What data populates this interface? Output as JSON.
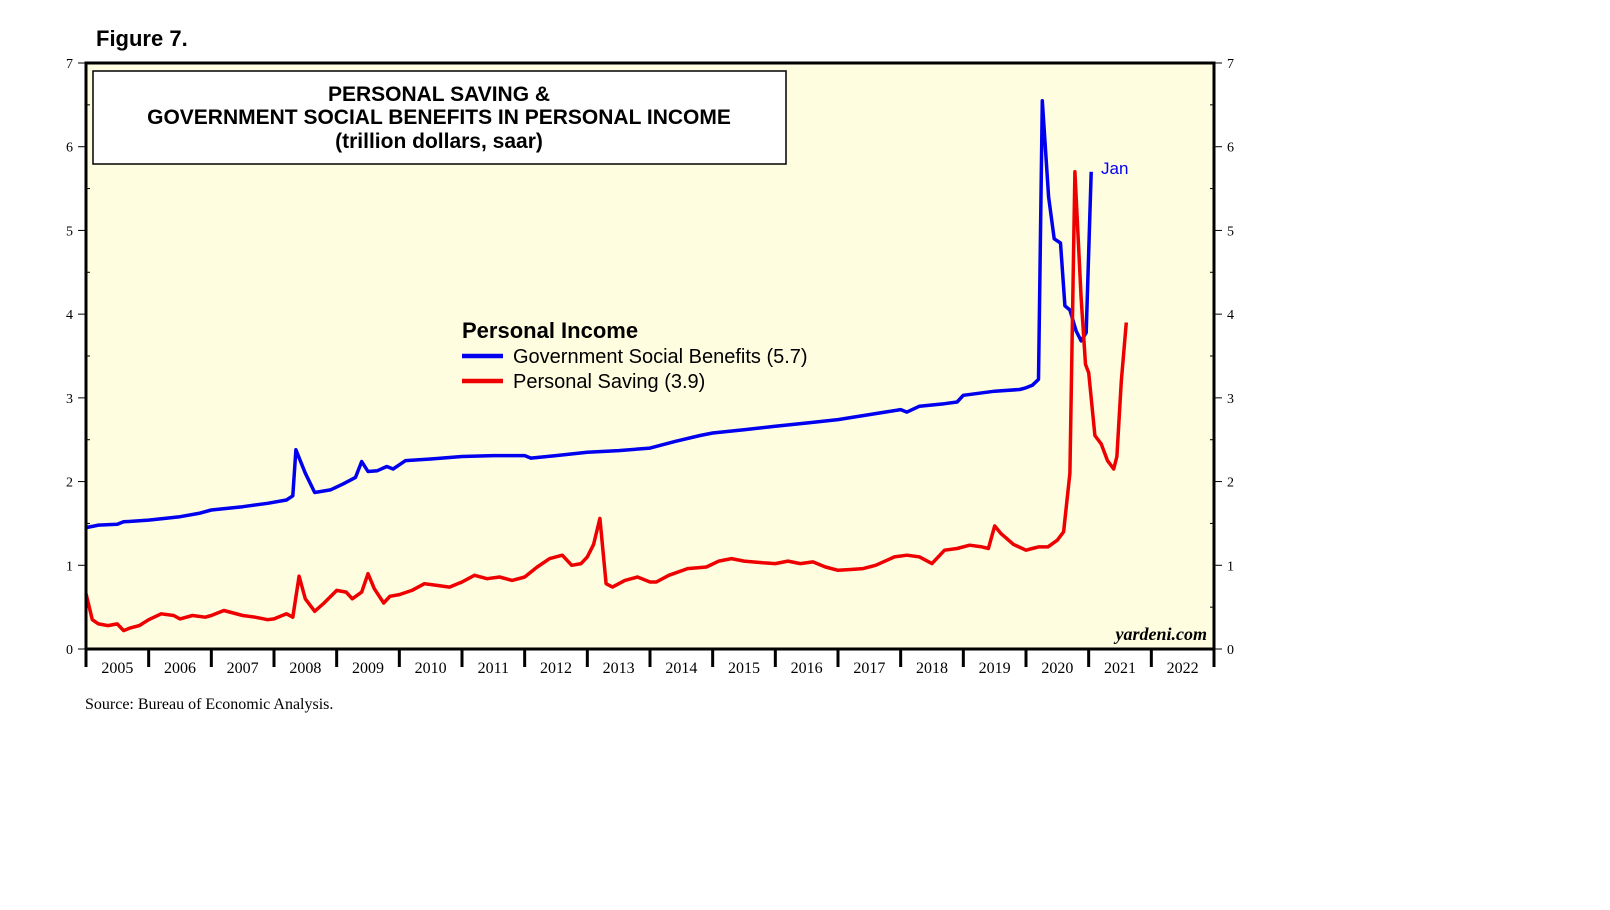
{
  "figure_label": "Figure 7.",
  "source_note": "Source: Bureau of Economic Analysis.",
  "colors": {
    "plot_background": "#fffde0",
    "gov_benefits": "#0000ee",
    "personal_saving": "#ee0000"
  },
  "chart_data": {
    "type": "line",
    "title": [
      "PERSONAL SAVING &",
      "GOVERNMENT SOCIAL BENEFITS IN PERSONAL INCOME",
      "(trillion dollars, saar)"
    ],
    "legend": {
      "title": "Personal Income",
      "entries": [
        "Government Social Benefits (5.7)",
        "Personal Saving (3.9)"
      ],
      "placement": "center-left"
    },
    "annotation": "Jan",
    "watermark": "yardeni.com",
    "xlim": [
      2005,
      2023
    ],
    "ylim": [
      0,
      7
    ],
    "yticks": [
      "0",
      "1",
      "2",
      "3",
      "4",
      "5",
      "6",
      "7"
    ],
    "xticks": [
      "2005",
      "2006",
      "2007",
      "2008",
      "2009",
      "2010",
      "2011",
      "2012",
      "2013",
      "2014",
      "2015",
      "2016",
      "2017",
      "2018",
      "2019",
      "2020",
      "2021",
      "2022"
    ],
    "series": [
      {
        "name": "Government Social Benefits",
        "color": "#0000ee",
        "points": [
          [
            2005.0,
            1.45
          ],
          [
            2005.2,
            1.48
          ],
          [
            2005.5,
            1.49
          ],
          [
            2005.6,
            1.52
          ],
          [
            2006.0,
            1.54
          ],
          [
            2006.5,
            1.58
          ],
          [
            2006.8,
            1.62
          ],
          [
            2007.0,
            1.66
          ],
          [
            2007.5,
            1.7
          ],
          [
            2007.9,
            1.74
          ],
          [
            2008.2,
            1.78
          ],
          [
            2008.3,
            1.83
          ],
          [
            2008.35,
            2.38
          ],
          [
            2008.5,
            2.1
          ],
          [
            2008.65,
            1.87
          ],
          [
            2008.9,
            1.9
          ],
          [
            2009.1,
            1.97
          ],
          [
            2009.3,
            2.05
          ],
          [
            2009.4,
            2.24
          ],
          [
            2009.5,
            2.12
          ],
          [
            2009.65,
            2.13
          ],
          [
            2009.8,
            2.18
          ],
          [
            2009.9,
            2.15
          ],
          [
            2010.0,
            2.2
          ],
          [
            2010.1,
            2.25
          ],
          [
            2010.5,
            2.27
          ],
          [
            2011.0,
            2.3
          ],
          [
            2011.5,
            2.31
          ],
          [
            2012.0,
            2.31
          ],
          [
            2012.1,
            2.28
          ],
          [
            2012.5,
            2.31
          ],
          [
            2013.0,
            2.35
          ],
          [
            2013.5,
            2.37
          ],
          [
            2014.0,
            2.4
          ],
          [
            2014.4,
            2.48
          ],
          [
            2014.8,
            2.55
          ],
          [
            2015.0,
            2.58
          ],
          [
            2015.5,
            2.62
          ],
          [
            2016.0,
            2.66
          ],
          [
            2016.5,
            2.7
          ],
          [
            2017.0,
            2.74
          ],
          [
            2017.5,
            2.8
          ],
          [
            2018.0,
            2.86
          ],
          [
            2018.1,
            2.83
          ],
          [
            2018.3,
            2.9
          ],
          [
            2018.7,
            2.93
          ],
          [
            2018.9,
            2.95
          ],
          [
            2019.0,
            3.03
          ],
          [
            2019.5,
            3.08
          ],
          [
            2019.9,
            3.1
          ],
          [
            2020.0,
            3.12
          ],
          [
            2020.1,
            3.15
          ],
          [
            2020.2,
            3.22
          ],
          [
            2020.26,
            6.55
          ],
          [
            2020.36,
            5.4
          ],
          [
            2020.45,
            4.9
          ],
          [
            2020.55,
            4.85
          ],
          [
            2020.62,
            4.1
          ],
          [
            2020.7,
            4.05
          ],
          [
            2020.8,
            3.8
          ],
          [
            2020.88,
            3.68
          ],
          [
            2020.96,
            3.78
          ],
          [
            2021.04,
            5.7
          ]
        ]
      },
      {
        "name": "Personal Saving",
        "color": "#ee0000",
        "points": [
          [
            2005.0,
            0.66
          ],
          [
            2005.1,
            0.35
          ],
          [
            2005.2,
            0.3
          ],
          [
            2005.35,
            0.28
          ],
          [
            2005.5,
            0.3
          ],
          [
            2005.6,
            0.22
          ],
          [
            2005.7,
            0.25
          ],
          [
            2005.85,
            0.28
          ],
          [
            2006.0,
            0.35
          ],
          [
            2006.2,
            0.42
          ],
          [
            2006.4,
            0.4
          ],
          [
            2006.5,
            0.36
          ],
          [
            2006.7,
            0.4
          ],
          [
            2006.9,
            0.38
          ],
          [
            2007.0,
            0.4
          ],
          [
            2007.2,
            0.46
          ],
          [
            2007.5,
            0.4
          ],
          [
            2007.7,
            0.38
          ],
          [
            2007.9,
            0.35
          ],
          [
            2008.0,
            0.36
          ],
          [
            2008.2,
            0.42
          ],
          [
            2008.3,
            0.38
          ],
          [
            2008.4,
            0.87
          ],
          [
            2008.5,
            0.6
          ],
          [
            2008.65,
            0.45
          ],
          [
            2008.8,
            0.55
          ],
          [
            2009.0,
            0.7
          ],
          [
            2009.15,
            0.68
          ],
          [
            2009.25,
            0.6
          ],
          [
            2009.4,
            0.68
          ],
          [
            2009.5,
            0.9
          ],
          [
            2009.6,
            0.72
          ],
          [
            2009.75,
            0.55
          ],
          [
            2009.85,
            0.63
          ],
          [
            2010.0,
            0.65
          ],
          [
            2010.2,
            0.7
          ],
          [
            2010.4,
            0.78
          ],
          [
            2010.6,
            0.76
          ],
          [
            2010.8,
            0.74
          ],
          [
            2011.0,
            0.8
          ],
          [
            2011.2,
            0.88
          ],
          [
            2011.4,
            0.84
          ],
          [
            2011.6,
            0.86
          ],
          [
            2011.8,
            0.82
          ],
          [
            2012.0,
            0.86
          ],
          [
            2012.2,
            0.98
          ],
          [
            2012.4,
            1.08
          ],
          [
            2012.6,
            1.12
          ],
          [
            2012.75,
            1.0
          ],
          [
            2012.9,
            1.02
          ],
          [
            2013.0,
            1.1
          ],
          [
            2013.1,
            1.25
          ],
          [
            2013.2,
            1.56
          ],
          [
            2013.3,
            0.78
          ],
          [
            2013.4,
            0.74
          ],
          [
            2013.6,
            0.82
          ],
          [
            2013.8,
            0.86
          ],
          [
            2014.0,
            0.8
          ],
          [
            2014.1,
            0.8
          ],
          [
            2014.3,
            0.88
          ],
          [
            2014.6,
            0.96
          ],
          [
            2014.9,
            0.98
          ],
          [
            2015.1,
            1.05
          ],
          [
            2015.3,
            1.08
          ],
          [
            2015.5,
            1.05
          ],
          [
            2015.8,
            1.03
          ],
          [
            2016.0,
            1.02
          ],
          [
            2016.2,
            1.05
          ],
          [
            2016.4,
            1.02
          ],
          [
            2016.6,
            1.04
          ],
          [
            2016.8,
            0.98
          ],
          [
            2017.0,
            0.94
          ],
          [
            2017.2,
            0.95
          ],
          [
            2017.4,
            0.96
          ],
          [
            2017.6,
            1.0
          ],
          [
            2017.9,
            1.1
          ],
          [
            2018.1,
            1.12
          ],
          [
            2018.3,
            1.1
          ],
          [
            2018.5,
            1.02
          ],
          [
            2018.7,
            1.18
          ],
          [
            2018.9,
            1.2
          ],
          [
            2019.1,
            1.24
          ],
          [
            2019.3,
            1.22
          ],
          [
            2019.4,
            1.2
          ],
          [
            2019.5,
            1.47
          ],
          [
            2019.6,
            1.38
          ],
          [
            2019.8,
            1.25
          ],
          [
            2020.0,
            1.18
          ],
          [
            2020.1,
            1.2
          ],
          [
            2020.2,
            1.22
          ],
          [
            2020.35,
            1.22
          ],
          [
            2020.5,
            1.3
          ],
          [
            2020.6,
            1.4
          ],
          [
            2020.7,
            2.1
          ],
          [
            2020.78,
            5.7
          ],
          [
            2020.88,
            4.2
          ],
          [
            2020.95,
            3.4
          ],
          [
            2021.0,
            3.3
          ],
          [
            2021.1,
            2.55
          ],
          [
            2021.2,
            2.45
          ],
          [
            2021.3,
            2.25
          ],
          [
            2021.4,
            2.15
          ],
          [
            2021.45,
            2.3
          ],
          [
            2021.52,
            3.2
          ],
          [
            2021.6,
            3.9
          ]
        ]
      }
    ]
  }
}
